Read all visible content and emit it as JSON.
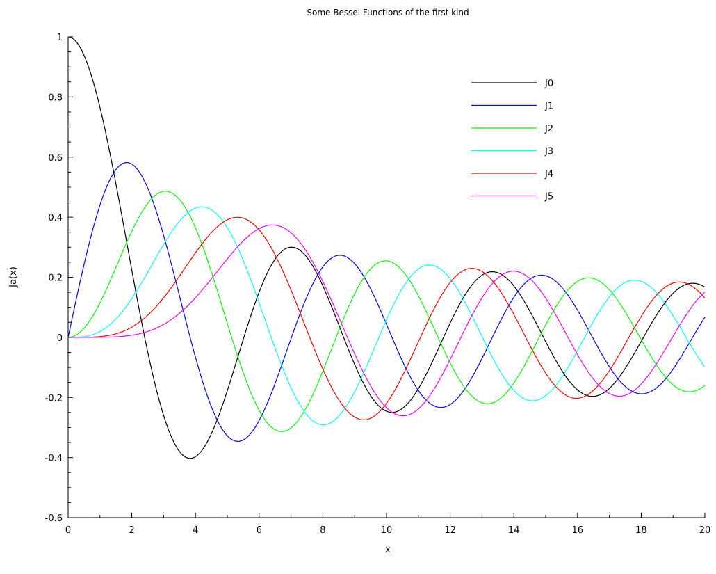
{
  "chart_data": {
    "type": "line",
    "title": "Some Bessel Functions of the first kind",
    "xlabel": "x",
    "ylabel": "Ja(x)",
    "xlim": [
      0,
      20
    ],
    "ylim": [
      -0.6,
      1
    ],
    "xticks": [
      0,
      2,
      4,
      6,
      8,
      10,
      12,
      14,
      16,
      18,
      20
    ],
    "yticks": [
      -0.6,
      -0.4,
      -0.2,
      0,
      0.2,
      0.4,
      0.6,
      0.8,
      1
    ],
    "xtick_labels": [
      "0",
      "2",
      "4",
      "6",
      "8",
      "10",
      "12",
      "14",
      "16",
      "18",
      "20"
    ],
    "ytick_labels": [
      "-0.6",
      "-0.4",
      "-0.2",
      "0",
      "0.2",
      "0.4",
      "0.6",
      "0.8",
      "1"
    ],
    "grid": false,
    "legend_position": "top-right",
    "x": [
      0,
      1,
      2,
      3,
      4,
      5,
      6,
      7,
      8,
      9,
      10,
      11,
      12,
      13,
      14,
      15,
      16,
      17,
      18,
      19,
      20
    ],
    "series": [
      {
        "name": "J0",
        "color": "#000000",
        "order": 0,
        "values": [
          1.0,
          0.7652,
          0.2239,
          -0.2601,
          -0.3971,
          -0.1776,
          0.1506,
          0.3001,
          0.1717,
          -0.0903,
          -0.2459,
          -0.1712,
          0.0477,
          0.2069,
          0.1711,
          -0.0142,
          -0.1749,
          -0.1699,
          -0.0134,
          0.1466,
          0.167
        ]
      },
      {
        "name": "J1",
        "color": "#0000ff",
        "order": 1,
        "values": [
          0.0,
          0.4401,
          0.5767,
          0.3391,
          -0.066,
          -0.3276,
          -0.2767,
          -0.0047,
          0.2346,
          0.2453,
          0.0435,
          -0.1768,
          -0.2234,
          -0.0703,
          0.1334,
          0.2051,
          0.0904,
          -0.0977,
          -0.188,
          -0.1057,
          0.0668
        ]
      },
      {
        "name": "J2",
        "color": "#00ff00",
        "order": 2,
        "values": [
          0.0,
          0.1149,
          0.3528,
          0.4861,
          0.3641,
          0.0466,
          -0.2429,
          -0.3014,
          -0.113,
          0.1448,
          0.2546,
          0.139,
          -0.0849,
          -0.2177,
          -0.152,
          0.0416,
          0.1862,
          0.1584,
          -0.0075,
          -0.1578,
          -0.1603
        ]
      },
      {
        "name": "J3",
        "color": "#00ffff",
        "order": 3,
        "values": [
          0.0,
          0.0196,
          0.1289,
          0.3091,
          0.4302,
          0.3648,
          0.1148,
          -0.1676,
          -0.2911,
          -0.1809,
          0.0584,
          0.2273,
          0.1951,
          -0.0034,
          -0.1768,
          -0.194,
          -0.0438,
          0.1349,
          0.1863,
          0.0725,
          -0.0989
        ]
      },
      {
        "name": "J4",
        "color": "#ff0000",
        "order": 4,
        "values": [
          0.0,
          0.0025,
          0.034,
          0.132,
          0.2811,
          0.3912,
          0.3576,
          0.1578,
          -0.1054,
          -0.2655,
          -0.2196,
          -0.015,
          0.1825,
          0.2193,
          0.0762,
          -0.1192,
          -0.2026,
          -0.1107,
          0.0696,
          0.1813,
          0.1307
        ]
      },
      {
        "name": "J5",
        "color": "#ff00ff",
        "order": 5,
        "values": [
          0.0,
          0.0002,
          0.007,
          0.043,
          0.1321,
          0.2611,
          0.3621,
          0.3479,
          0.1858,
          -0.055,
          -0.2341,
          -0.2383,
          -0.0735,
          0.1316,
          0.2204,
          0.1305,
          -0.0575,
          -0.187,
          -0.1554,
          0.0036,
          0.1512
        ]
      }
    ]
  }
}
